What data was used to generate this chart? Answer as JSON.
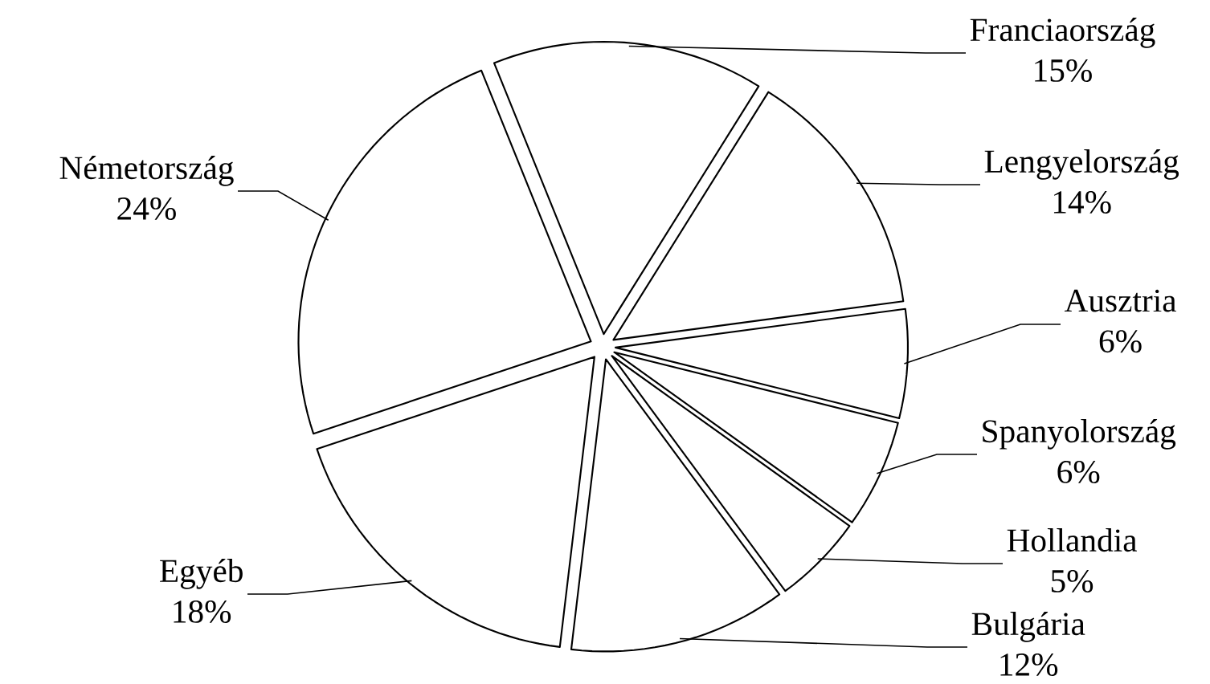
{
  "chart_data": {
    "type": "pie",
    "categories": [
      "Franciaország",
      "Lengyelország",
      "Ausztria",
      "Spanyolország",
      "Hollandia",
      "Bulgária",
      "Egyéb",
      "Németország"
    ],
    "values": [
      15,
      14,
      6,
      6,
      5,
      12,
      18,
      24
    ],
    "value_labels": [
      "15%",
      "14%",
      "6%",
      "6%",
      "5%",
      "12%",
      "18%",
      "24%"
    ],
    "colors": [
      "#ffffff",
      "#ffffff",
      "#ffffff",
      "#ffffff",
      "#ffffff",
      "#ffffff",
      "#ffffff",
      "#ffffff"
    ]
  }
}
